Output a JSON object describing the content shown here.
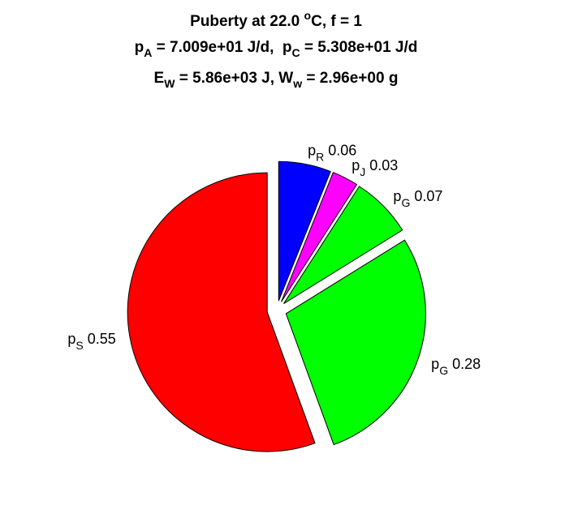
{
  "chart_data": {
    "type": "pie",
    "title_lines": [
      [
        "Puberty at 22.0 ",
        "o",
        "C, f = 1"
      ],
      [
        "p",
        "A",
        " = 7.009e+01 J/d,  p",
        "C",
        " = 5.308e+01 J/d"
      ],
      [
        "E",
        "W",
        " = 5.86e+03 J, W",
        "w",
        " = 2.96e+00 g"
      ]
    ],
    "symbols": [
      "p",
      "p",
      "p",
      "p",
      "p"
    ],
    "subscripts": [
      "R",
      "J",
      "G",
      "G",
      "S"
    ],
    "values": [
      0.06,
      0.03,
      0.07,
      0.28,
      0.55
    ],
    "colors": [
      "#0000ff",
      "#ff00ff",
      "#00ff00",
      "#00ff00",
      "#ff0000"
    ],
    "explode": true
  }
}
